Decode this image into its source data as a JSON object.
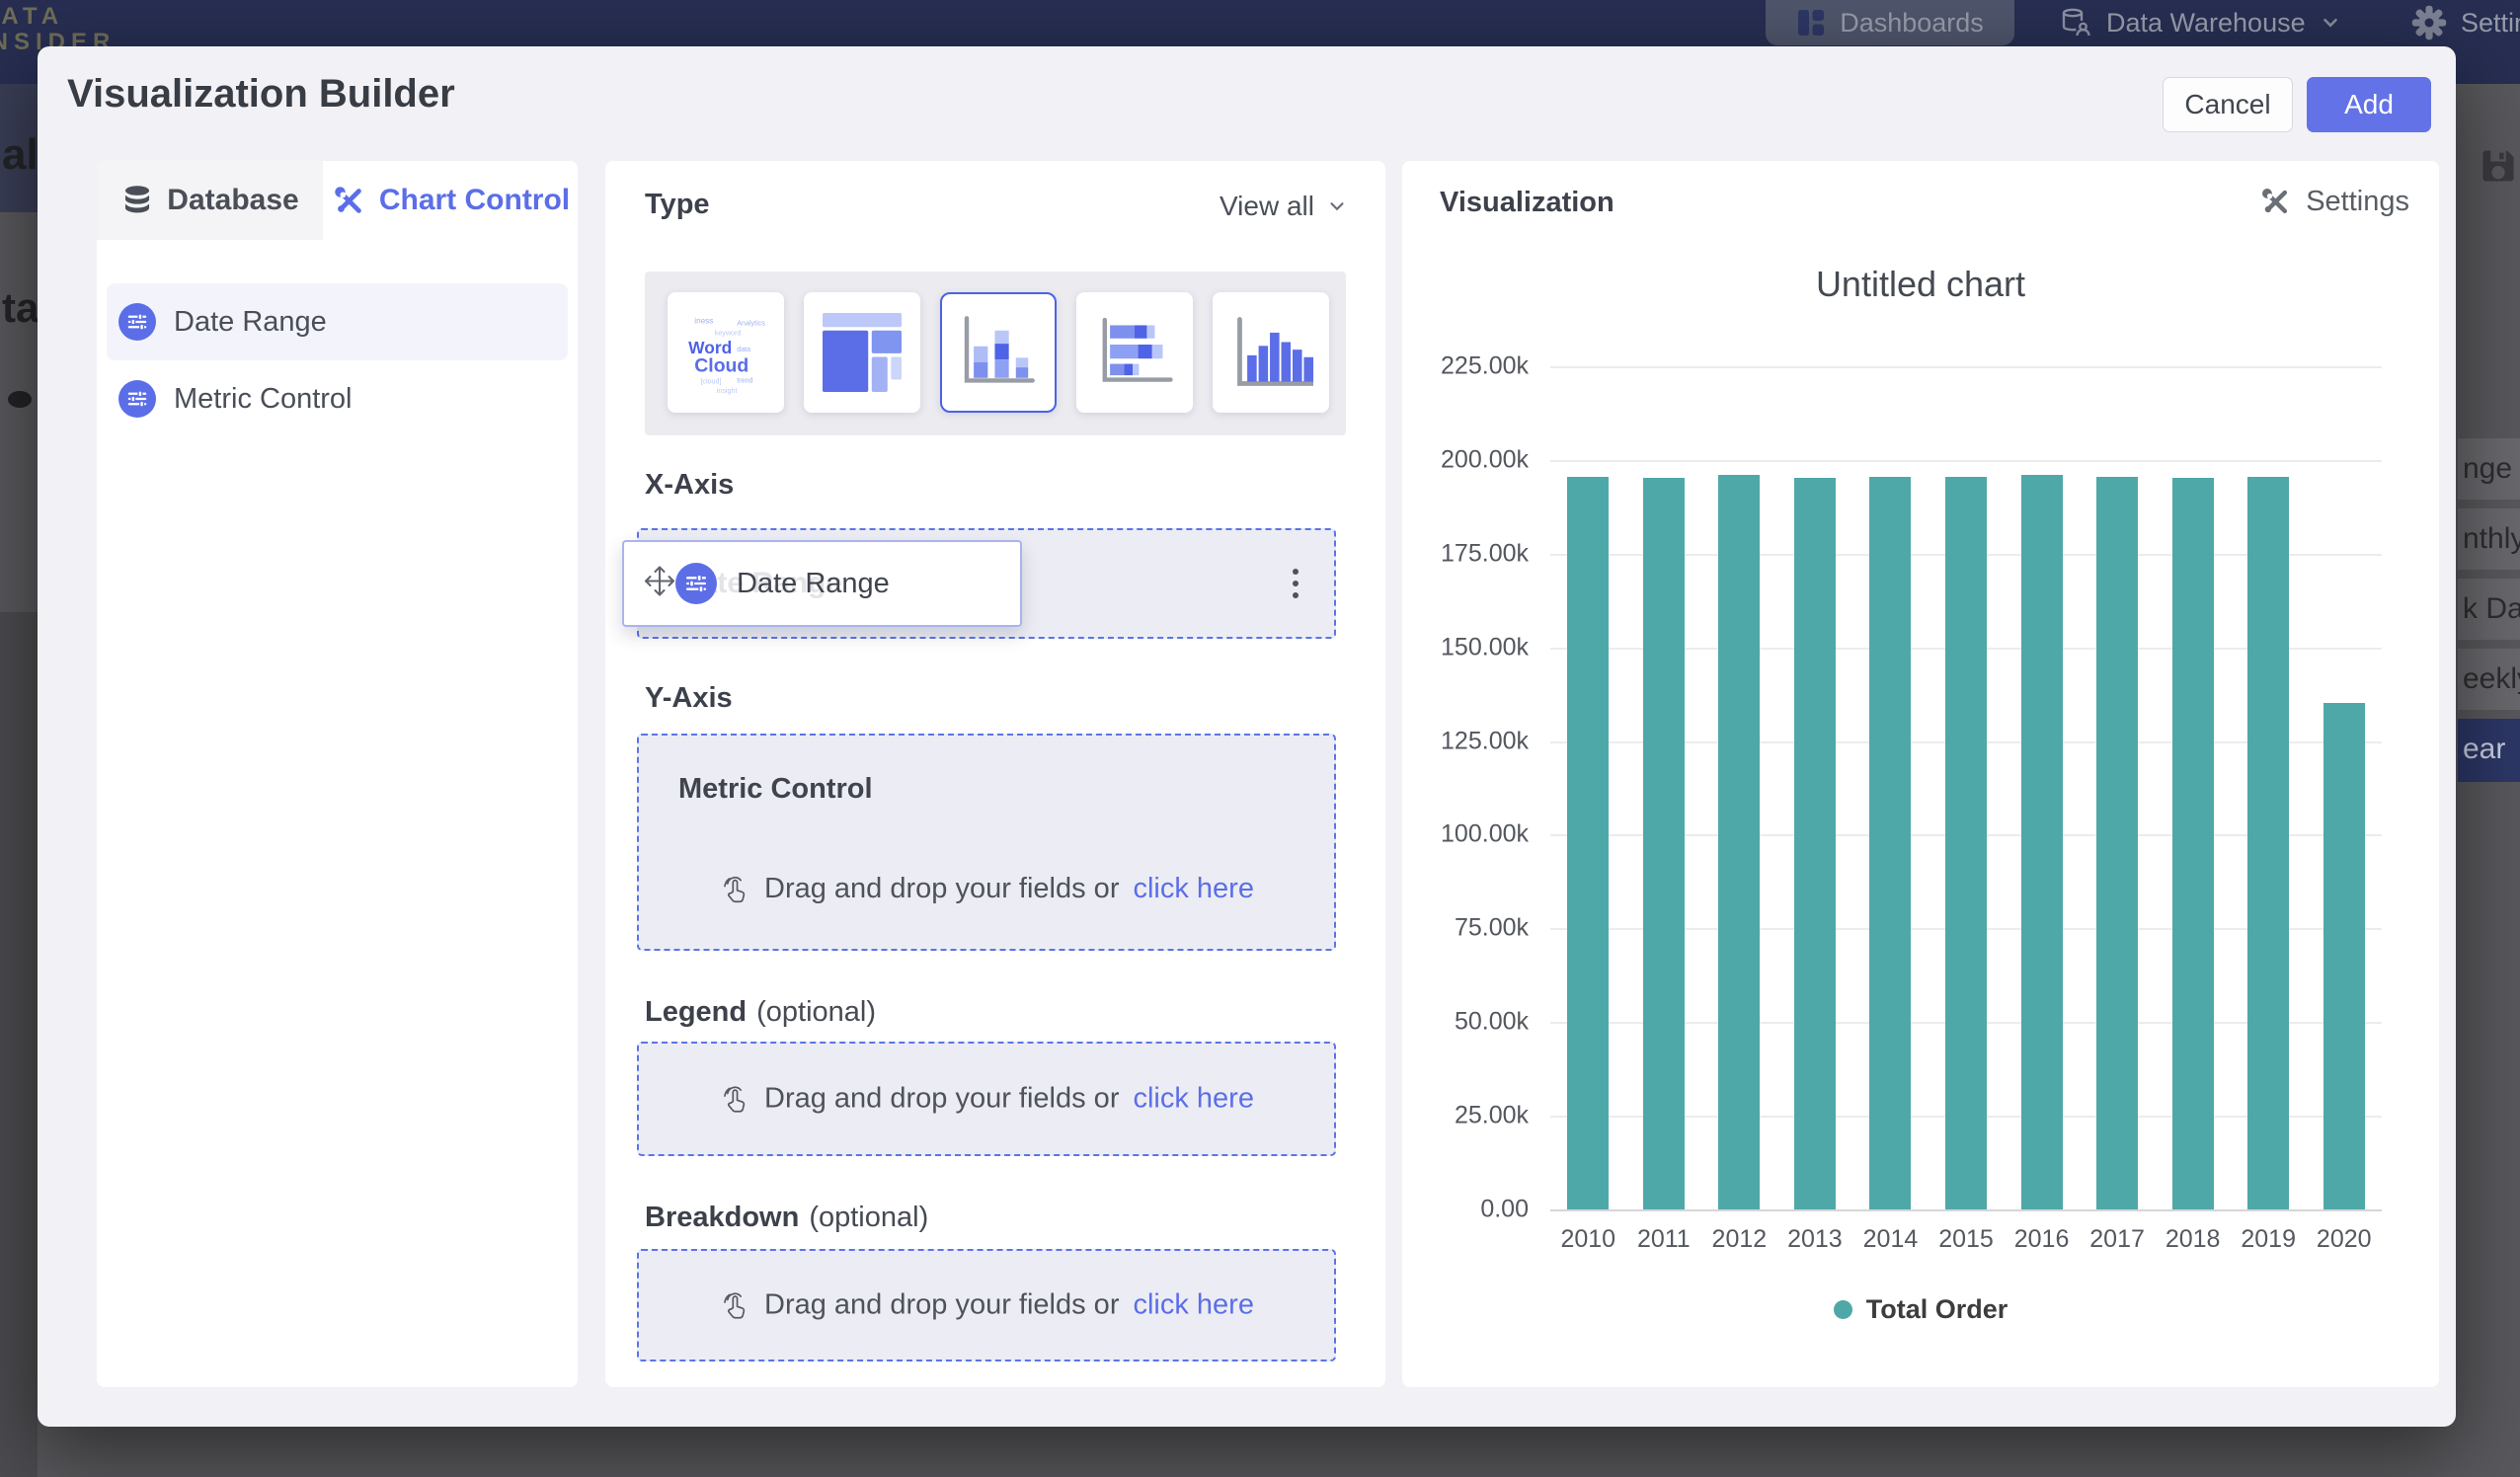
{
  "colors": {
    "accent": "#5b6ee8",
    "bar_teal": "#4fa8a8",
    "topbar_navy": "#272e52"
  },
  "topbar": {
    "brand_line1": "DATA",
    "brand_line2": "INSIDER",
    "nav": [
      {
        "label": "Dashboards"
      },
      {
        "label": "Data Warehouse"
      },
      {
        "label": "Settings"
      }
    ]
  },
  "backdrop": {
    "left_fragments": [
      "al",
      "ta"
    ],
    "right_fragments": [
      "nge",
      "nthly",
      "k Date",
      "eekly",
      "ear"
    ]
  },
  "modal": {
    "title": "Visualization Builder",
    "cancel_label": "Cancel",
    "add_label": "Add"
  },
  "left_panel": {
    "tabs": [
      {
        "label": "Database"
      },
      {
        "label": "Chart Control"
      }
    ],
    "fields": [
      {
        "label": "Date Range"
      },
      {
        "label": "Metric Control"
      }
    ]
  },
  "builder": {
    "type_label": "Type",
    "view_all_label": "View all",
    "x_axis": {
      "label": "X-Axis",
      "chip_label": "Date Range",
      "ghost_label": "Date Range"
    },
    "y_axis": {
      "label": "Y-Axis",
      "control_title": "Metric Control",
      "drop_text": "Drag and drop your fields or",
      "drop_link": "click here"
    },
    "legend": {
      "label": "Legend",
      "optional_label": "(optional)",
      "drop_text": "Drag and drop your fields or",
      "drop_link": "click here"
    },
    "breakdown": {
      "label": "Breakdown",
      "optional_label": "(optional)",
      "drop_text": "Drag and drop your fields or",
      "drop_link": "click here"
    }
  },
  "visualization": {
    "header": "Visualization",
    "settings_label": "Settings"
  },
  "chart_data": {
    "type": "bar",
    "title": "Untitled chart",
    "categories": [
      "2010",
      "2011",
      "2012",
      "2013",
      "2014",
      "2015",
      "2016",
      "2017",
      "2018",
      "2019",
      "2020"
    ],
    "values": [
      195400,
      195300,
      196100,
      195300,
      195500,
      195400,
      196100,
      195400,
      195300,
      195400,
      135200
    ],
    "series_name": "Total Order",
    "bar_color": "#4fa8a8",
    "ylim": [
      0,
      225000
    ],
    "y_ticks": {
      "labels": [
        "0.00",
        "25.00k",
        "50.00k",
        "75.00k",
        "100.00k",
        "125.00k",
        "150.00k",
        "175.00k",
        "200.00k",
        "225.00k"
      ],
      "values": [
        0,
        25000,
        50000,
        75000,
        100000,
        125000,
        150000,
        175000,
        200000,
        225000
      ]
    },
    "grid": "horizontal",
    "legend_position": "bottom"
  }
}
